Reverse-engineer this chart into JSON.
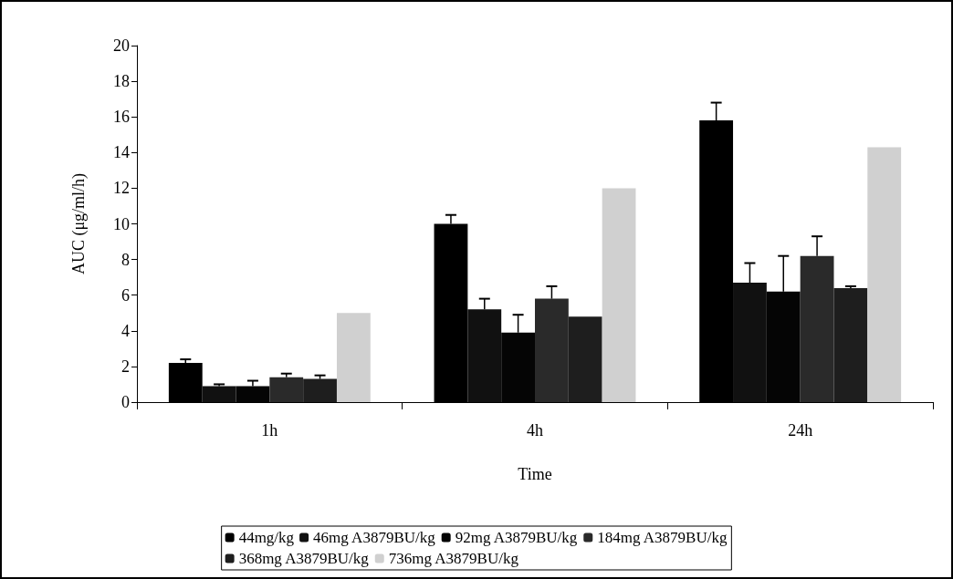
{
  "chart_data": {
    "type": "bar",
    "xlabel": "Time",
    "ylabel": "AUC (μg/ml/h)",
    "categories": [
      "1h",
      "4h",
      "24h"
    ],
    "series": [
      {
        "name": "44mg/kg",
        "color": "#000000",
        "values": [
          2.2,
          10.0,
          15.8
        ],
        "errors": [
          0.2,
          0.5,
          1.0
        ]
      },
      {
        "name": "46mg A3879BU/kg",
        "color": "#111111",
        "values": [
          0.9,
          5.2,
          6.7
        ],
        "errors": [
          0.1,
          0.6,
          1.1
        ]
      },
      {
        "name": "92mg A3879BU/kg",
        "color": "#050505",
        "values": [
          0.9,
          3.9,
          6.2
        ],
        "errors": [
          0.3,
          1.0,
          2.0
        ]
      },
      {
        "name": "184mg A3879BU/kg",
        "color": "#2a2a2a",
        "values": [
          1.4,
          5.8,
          8.2
        ],
        "errors": [
          0.2,
          0.7,
          1.1
        ]
      },
      {
        "name": "368mg A3879BU/kg",
        "color": "#1e1e1e",
        "values": [
          1.3,
          4.8,
          6.4
        ],
        "errors": [
          0.2,
          null,
          0.1
        ]
      },
      {
        "name": "736mg A3879BU/kg",
        "color": "#d0d0d0",
        "values": [
          5.0,
          12.0,
          14.3
        ],
        "errors": [
          null,
          null,
          null
        ]
      }
    ],
    "ylim": [
      0,
      20
    ],
    "yticks": [
      0,
      2,
      4,
      6,
      8,
      10,
      12,
      14,
      16,
      18,
      20
    ],
    "grid": false,
    "legend": "bottom"
  }
}
